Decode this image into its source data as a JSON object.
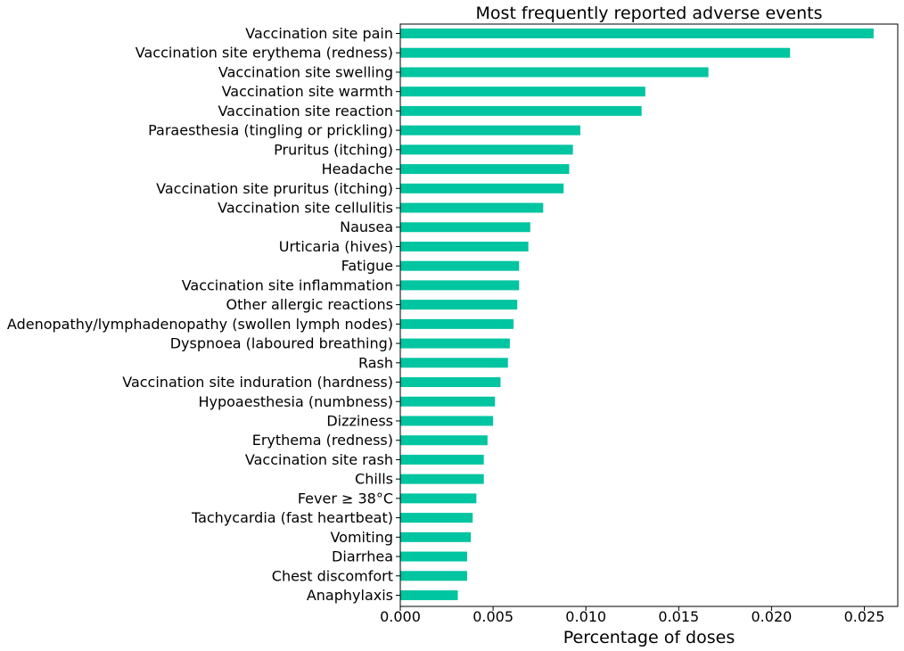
{
  "chart_data": {
    "type": "bar",
    "orientation": "horizontal",
    "title": "Most frequently reported adverse events",
    "xlabel": "Percentage of doses",
    "ylabel": "",
    "xlim": [
      0,
      0.0268
    ],
    "xticks": [
      "0.000",
      "0.005",
      "0.010",
      "0.015",
      "0.020",
      "0.025"
    ],
    "xtick_values": [
      0,
      0.005,
      0.01,
      0.015,
      0.02,
      0.025
    ],
    "grid": false,
    "bar_color": "#00c5a1",
    "categories": [
      "Vaccination site pain",
      "Vaccination site erythema (redness)",
      "Vaccination site swelling",
      "Vaccination site warmth",
      "Vaccination site reaction",
      "Paraesthesia (tingling or prickling)",
      "Pruritus (itching)",
      "Headache",
      "Vaccination site pruritus (itching)",
      "Vaccination site cellulitis",
      "Nausea",
      "Urticaria (hives)",
      "Fatigue",
      "Vaccination site inflammation",
      "Other allergic reactions",
      "Adenopathy/lymphadenopathy (swollen lymph nodes)",
      "Dyspnoea (laboured breathing)",
      "Rash",
      "Vaccination site induration (hardness)",
      "Hypoaesthesia (numbness)",
      "Dizziness",
      "Erythema (redness)",
      "Vaccination site rash",
      "Chills",
      "Fever ≥ 38°C",
      "Tachycardia (fast heartbeat)",
      "Vomiting",
      "Diarrhea",
      "Chest discomfort",
      "Anaphylaxis"
    ],
    "values": [
      0.0255,
      0.021,
      0.0166,
      0.0132,
      0.013,
      0.0097,
      0.0093,
      0.0091,
      0.0088,
      0.0077,
      0.007,
      0.0069,
      0.0064,
      0.0064,
      0.0063,
      0.0061,
      0.0059,
      0.0058,
      0.0054,
      0.0051,
      0.005,
      0.0047,
      0.0045,
      0.0045,
      0.0041,
      0.0039,
      0.0038,
      0.0036,
      0.0036,
      0.0031
    ]
  }
}
